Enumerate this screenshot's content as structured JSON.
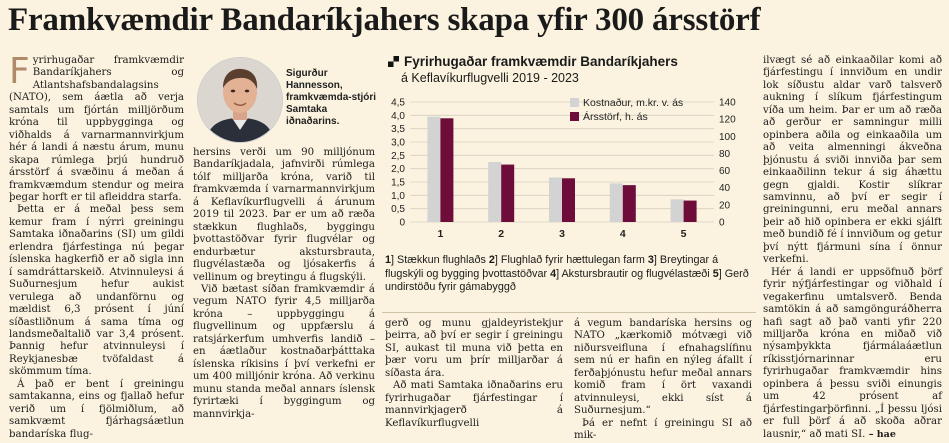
{
  "headline": "Framkvæmdir Bandaríkjahers skapa yfir 300 ársstörf",
  "photo_caption": {
    "name": "Sigurður Hannesson,",
    "title": "framkvæmda-stjóri Samtaka iðnaðarins."
  },
  "col1": {
    "dropcap": "F",
    "p1": "yrirhugaðar framkvæmdir Bandaríkjahers og Atlantshafsbandalagsins (NATO), sem áætla að verja samtals um fjórtán milljörðum króna til uppbygginga og viðhalds á varnarmannvirkjum hér á landi á næstu árum, munu skapa rúmlega þrjú hundruð ársstörf á svæðinu á meðan á framkvæmdum stendur og meira þegar horft er til afleiddra starfa.",
    "p2": "Þetta er á meðal þess sem kemur fram í nýrri greiningu Samtaka iðnaðarins (SI) um gildi erlendra fjárfestinga nú þegar íslenska hagkerfið er að sigla inn í samdráttarskeið. Atvinnuleysi á Suðurnesjum hefur aukist verulega að undanförnu og mældist 6,3 prósent í júní síðastliðnum á sama tíma og landsmeðaltalið var 3,4 prósent. Þannig hefur atvinnuleysi í Reykjanesbæ tvöfaldast á skömmum tíma.",
    "p3": "Á það er bent í greiningu samtakanna, eins og fjallað hefur verið um í fjölmiðlum, að samkvæmt fjárhagsáætlun bandaríska flug-"
  },
  "col2": {
    "p1": "hersins verði um 90 milljónum Bandaríkjadala, jafnvirði rúmlega tólf milljarða króna, varið til framkvæmda í varnarmannvirkjum á Keflavíkurflugvelli á árunum 2019 til 2023. Þar er um að ræða stækkun flughlaðs, byggingu þvottastöðvar fyrir flugvélar og endurbætur akstursbrauta, flugvélastæða og ljósakerfis á vellinum og breytingu á flugskýli.",
    "p2": "Við bætast síðan framkvæmdir á vegum NATO fyrir 4,5 milljarða króna – uppbyggingu á flugvellinum og uppfærslu á ratsjárkerfum umhverfis landið – en áætlaður kostnaðarþátttaka íslenska ríkisins í því verkefni er um 400 milljónir króna. Að verkinu munu standa meðal annars íslensk fyrirtæki í byggingum og mannvirkja-"
  },
  "col3": {
    "p1": "gerð og munu gjaldeyristekjur þeirra, að því er segir í greiningu SI, aukast til muna við þetta en þær voru um þrír milljarðar á síðasta ára.",
    "p2": "Að mati Samtaka iðnaðarins eru fyrirhugaðar fjárfestingar í mannvirkjagerð á Keflavíkurflugvelli"
  },
  "col4": {
    "p1": "á vegum bandaríska hersins og NATO „kærkomið mótvægi við niðursveifluna í efnahagslífinu sem nú er hafin en nýleg áfallt í ferðaþjónustu hefur meðal annars komið fram í ört vaxandi atvinnuleysi, ekki síst á Suðurnesjum.“",
    "p2": "Þá er nefnt í greiningu SI að mik-"
  },
  "col5": {
    "p1": "ilvægt sé að einkaaðilar komi að fjárfestingu í innviðum en undir lok síðustu aldar varð talsverð aukning í slíkum fjárfestingum víða um heim. Þar er um að ræða að gerður er samningur milli opinbera aðila og einkaaðila um að veita almenningi ákveðna þjónustu á sviði innviða þar sem einkaaðilinn tekur á sig áhættu gegn gjaldi. Kostir slíkrar samvinnu, að því er segir í greiningunni, eru meðal annars þeir að hið opinbera er ekki sjálft með bundið fé í innviðum og getur því nýtt fjármuni sína í önnur verkefni.",
    "p2": "Hér á landi er uppsöfnuð þörf fyrir nýfjárfestingar og viðhald í vegakerfinu umtalsverð. Benda samtökin á að samgönguráðherra hafi sagt að það vanti yfir 220 milljarða króna en miðað við nýsamþykkta fjármálaáætlun ríkisstjórnarinnar eru fyrirhugaðar framkvæmdir hins opinbera á þessu sviði einungis um 42 prósent af fjárfestingarþörfinni. „Í þessu ljósi er full þörf á að skoða aðrar lausnir,“ að mati SI.",
    "signature": " – hae"
  },
  "chart_data": {
    "type": "bar",
    "title": "Fyrirhugaðar framkvæmdir Bandaríkjahers",
    "subtitle": "á Keflavíkurflugvelli 2019 - 2023",
    "categories": [
      "1",
      "2",
      "3",
      "4",
      "5"
    ],
    "series": [
      {
        "name": "Kostnaður, m.kr. v. ás",
        "color": "#d3d3d3",
        "values": [
          3.95,
          2.25,
          1.67,
          1.45,
          0.85
        ]
      },
      {
        "name": "Ársstörf, h. ás",
        "color": "#6e0c3a",
        "values": [
          121,
          67,
          51,
          43,
          25
        ]
      }
    ],
    "ylim_left": [
      0,
      4.5
    ],
    "yticks_left": [
      "0",
      "0,5",
      "1,0",
      "1,5",
      "2,0",
      "2,5",
      "3,0",
      "3,5",
      "4,0",
      "4,5"
    ],
    "ylim_right": [
      0,
      140
    ],
    "yticks_right": [
      "0",
      "20",
      "40",
      "60",
      "80",
      "100",
      "120",
      "140"
    ],
    "grid": true,
    "legend_position": "top-right"
  },
  "chart_legend": {
    "n1": "1",
    "t1": "Stækkun flughlaðs",
    "n2": "2",
    "t2": "Flughlað fyrir hættulegan farm",
    "n3": "3",
    "t3": "Breytingar á flugskýli og bygging þvottastöðvar",
    "n4": "4",
    "t4": "Akstursbrautir og flugvélastæði",
    "n5": "5",
    "t5": "Gerð undirstöðu fyrir gámabyggð"
  }
}
